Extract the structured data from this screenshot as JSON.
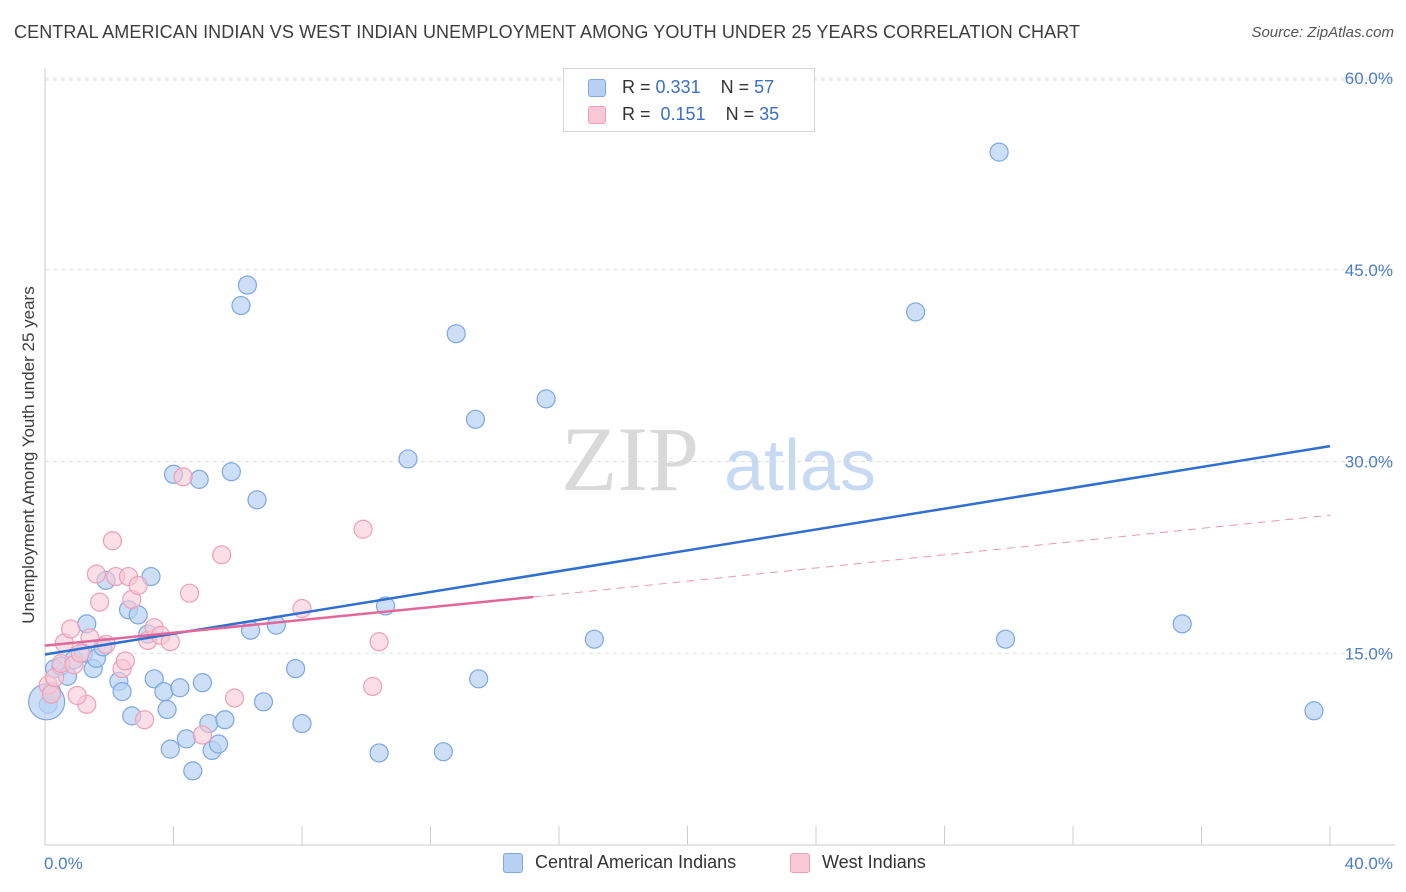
{
  "title": "CENTRAL AMERICAN INDIAN VS WEST INDIAN UNEMPLOYMENT AMONG YOUTH UNDER 25 YEARS CORRELATION CHART",
  "source": "Source: ZipAtlas.com",
  "watermark": {
    "zip": "ZIP",
    "atlas": "atlas"
  },
  "legend": {
    "r_label": "R =",
    "n_label": "N =",
    "blue": {
      "r": "0.331",
      "n": "57"
    },
    "pink": {
      "r": "0.151",
      "n": "35"
    }
  },
  "bottom_legend": {
    "blue": "Central American Indians",
    "pink": "West Indians"
  },
  "colors": {
    "blue_fill": "#b8d1f3",
    "blue_stroke": "#7ea7e0",
    "blue_line": "#2f6fd0",
    "pink_fill": "#f8c8d6",
    "pink_stroke": "#ee9fb7",
    "pink_line": "#e0689a",
    "grid": "#dddddd",
    "tick_text": "#4a7cc9"
  },
  "chart_data": {
    "type": "scatter",
    "title": "CENTRAL AMERICAN INDIAN VS WEST INDIAN UNEMPLOYMENT AMONG YOUTH UNDER 25 YEARS CORRELATION CHART",
    "xlabel": "",
    "ylabel": "Unemployment Among Youth under 25 years",
    "xlim": [
      0,
      40
    ],
    "ylim": [
      0,
      60
    ],
    "x_tick_labels": [
      "0.0%",
      "40.0%"
    ],
    "y_ticks": [
      15,
      30,
      45,
      60
    ],
    "y_tick_labels": [
      "15.0%",
      "30.0%",
      "45.0%",
      "60.0%"
    ],
    "series": [
      {
        "name": "Central American Indians",
        "points": [
          [
            0.1,
            11.0
          ],
          [
            0.2,
            12.0
          ],
          [
            0.3,
            13.8
          ],
          [
            0.5,
            14.0
          ],
          [
            0.7,
            13.2
          ],
          [
            0.9,
            14.5
          ],
          [
            1.2,
            15.0
          ],
          [
            1.3,
            17.3
          ],
          [
            1.5,
            13.8
          ],
          [
            1.6,
            14.6
          ],
          [
            1.8,
            15.5
          ],
          [
            1.9,
            20.7
          ],
          [
            2.3,
            12.8
          ],
          [
            2.4,
            12.0
          ],
          [
            2.6,
            18.4
          ],
          [
            2.7,
            10.1
          ],
          [
            2.9,
            18.0
          ],
          [
            3.2,
            16.5
          ],
          [
            3.3,
            21.0
          ],
          [
            3.4,
            13.0
          ],
          [
            3.7,
            12.0
          ],
          [
            3.8,
            10.6
          ],
          [
            3.9,
            7.5
          ],
          [
            4.0,
            29.0
          ],
          [
            4.2,
            12.3
          ],
          [
            4.4,
            8.3
          ],
          [
            4.6,
            5.8
          ],
          [
            4.8,
            28.6
          ],
          [
            4.9,
            12.7
          ],
          [
            5.1,
            9.5
          ],
          [
            5.2,
            7.4
          ],
          [
            5.4,
            7.9
          ],
          [
            5.6,
            9.8
          ],
          [
            5.8,
            29.2
          ],
          [
            6.1,
            42.2
          ],
          [
            6.3,
            43.8
          ],
          [
            6.4,
            16.8
          ],
          [
            6.6,
            27.0
          ],
          [
            6.8,
            11.2
          ],
          [
            7.2,
            17.2
          ],
          [
            7.8,
            13.8
          ],
          [
            8.0,
            9.5
          ],
          [
            10.4,
            7.2
          ],
          [
            10.6,
            18.7
          ],
          [
            11.3,
            30.2
          ],
          [
            12.4,
            7.3
          ],
          [
            12.8,
            40.0
          ],
          [
            13.4,
            33.3
          ],
          [
            13.5,
            13.0
          ],
          [
            15.6,
            34.9
          ],
          [
            17.1,
            16.1
          ],
          [
            27.1,
            41.7
          ],
          [
            29.7,
            54.2
          ],
          [
            29.9,
            16.1
          ],
          [
            35.4,
            17.3
          ],
          [
            39.5,
            10.5
          ],
          [
            0.05,
            11.2
          ]
        ]
      },
      {
        "name": "West Indians",
        "points": [
          [
            0.1,
            12.5
          ],
          [
            0.2,
            11.8
          ],
          [
            0.3,
            13.1
          ],
          [
            0.5,
            14.2
          ],
          [
            0.6,
            15.8
          ],
          [
            0.8,
            16.9
          ],
          [
            0.9,
            14.1
          ],
          [
            1.1,
            15.0
          ],
          [
            1.3,
            11.0
          ],
          [
            1.4,
            16.2
          ],
          [
            1.6,
            21.2
          ],
          [
            1.7,
            19.0
          ],
          [
            1.9,
            15.7
          ],
          [
            2.1,
            23.8
          ],
          [
            2.2,
            21.0
          ],
          [
            2.4,
            13.8
          ],
          [
            2.5,
            14.4
          ],
          [
            2.6,
            21.0
          ],
          [
            2.7,
            19.2
          ],
          [
            2.9,
            20.3
          ],
          [
            3.1,
            9.8
          ],
          [
            3.2,
            16.0
          ],
          [
            3.4,
            17.0
          ],
          [
            3.6,
            16.4
          ],
          [
            3.9,
            15.9
          ],
          [
            4.3,
            28.8
          ],
          [
            4.5,
            19.7
          ],
          [
            4.9,
            8.6
          ],
          [
            5.5,
            22.7
          ],
          [
            5.9,
            11.5
          ],
          [
            8.0,
            18.5
          ],
          [
            9.9,
            24.7
          ],
          [
            10.2,
            12.4
          ],
          [
            10.4,
            15.9
          ],
          [
            1.0,
            11.7
          ]
        ]
      }
    ],
    "trend_lines": [
      {
        "series": "Central American Indians",
        "x": [
          0,
          40
        ],
        "y": [
          14.9,
          31.2
        ],
        "style": "solid"
      },
      {
        "series": "West Indians",
        "x": [
          0,
          15.2
        ],
        "y": [
          15.6,
          19.4
        ],
        "style": "solid"
      },
      {
        "series": "West Indians",
        "x": [
          15.2,
          40
        ],
        "y": [
          19.4,
          25.8
        ],
        "style": "dashed"
      }
    ],
    "legend_position": "top-center"
  }
}
